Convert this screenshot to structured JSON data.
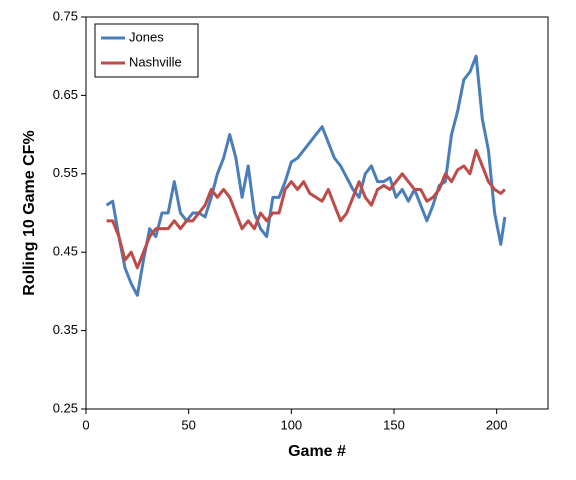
{
  "chart_data": {
    "type": "line",
    "x_label": "Game #",
    "y_label": "Rolling 10 Game CF%",
    "x": [
      10,
      13,
      16,
      19,
      22,
      25,
      28,
      31,
      34,
      37,
      40,
      43,
      46,
      49,
      52,
      55,
      58,
      61,
      64,
      67,
      70,
      73,
      76,
      79,
      82,
      85,
      88,
      91,
      94,
      97,
      100,
      103,
      106,
      109,
      112,
      115,
      118,
      121,
      124,
      127,
      130,
      133,
      136,
      139,
      142,
      145,
      148,
      151,
      154,
      157,
      160,
      163,
      166,
      169,
      172,
      175,
      178,
      181,
      184,
      187,
      190,
      193,
      196,
      199,
      202,
      204
    ],
    "series": [
      {
        "name": "Jones",
        "color": "#4a7ebb",
        "values": [
          0.51,
          0.515,
          0.47,
          0.43,
          0.41,
          0.395,
          0.44,
          0.48,
          0.47,
          0.5,
          0.5,
          0.54,
          0.5,
          0.49,
          0.5,
          0.5,
          0.495,
          0.52,
          0.55,
          0.57,
          0.6,
          0.57,
          0.52,
          0.56,
          0.5,
          0.48,
          0.47,
          0.52,
          0.52,
          0.54,
          0.565,
          0.57,
          0.58,
          0.59,
          0.6,
          0.61,
          0.59,
          0.57,
          0.56,
          0.545,
          0.53,
          0.52,
          0.55,
          0.56,
          0.54,
          0.54,
          0.545,
          0.52,
          0.53,
          0.515,
          0.53,
          0.51,
          0.49,
          0.51,
          0.535,
          0.54,
          0.6,
          0.63,
          0.67,
          0.68,
          0.7,
          0.62,
          0.58,
          0.5,
          0.46,
          0.495
        ]
      },
      {
        "name": "Nashville",
        "color": "#be4b48",
        "values": [
          0.49,
          0.49,
          0.47,
          0.44,
          0.45,
          0.43,
          0.45,
          0.47,
          0.48,
          0.48,
          0.48,
          0.49,
          0.48,
          0.49,
          0.49,
          0.5,
          0.51,
          0.53,
          0.52,
          0.53,
          0.52,
          0.5,
          0.48,
          0.49,
          0.48,
          0.5,
          0.49,
          0.5,
          0.5,
          0.53,
          0.54,
          0.53,
          0.54,
          0.525,
          0.52,
          0.515,
          0.53,
          0.51,
          0.49,
          0.5,
          0.52,
          0.54,
          0.52,
          0.51,
          0.53,
          0.535,
          0.53,
          0.54,
          0.55,
          0.54,
          0.53,
          0.53,
          0.515,
          0.52,
          0.53,
          0.55,
          0.54,
          0.555,
          0.56,
          0.55,
          0.58,
          0.56,
          0.54,
          0.53,
          0.525,
          0.53
        ]
      }
    ],
    "xlim": [
      0,
      225
    ],
    "xticks": [
      0,
      50,
      100,
      150,
      200
    ],
    "ylim": [
      0.25,
      0.75
    ],
    "yticks": [
      0.25,
      0.35,
      0.45,
      0.55,
      0.65,
      0.75
    ],
    "legend": "upper-left",
    "grid": false
  }
}
